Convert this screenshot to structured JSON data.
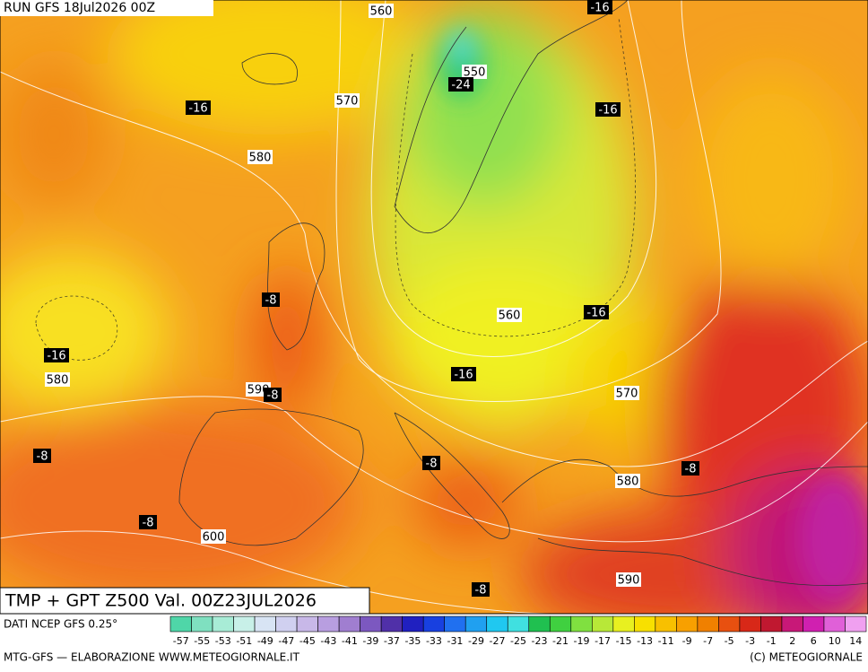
{
  "header": {
    "run": "RUN GFS 18Jul2026 00Z",
    "title": "TMP + GPT Z500 Val. 00Z23JUL2026"
  },
  "map": {
    "labels": [
      "560",
      "-16",
      "550",
      "-24",
      "570",
      "-16",
      "-16",
      "580",
      "-8",
      "560",
      "-16",
      "-16",
      "580",
      "-16",
      "590",
      "-8",
      "570",
      "-8",
      "-8",
      "-8",
      "580",
      "-8",
      "600",
      "590",
      "-8"
    ]
  },
  "colorbar": {
    "labels": [
      "-57",
      "-55",
      "-53",
      "-51",
      "-49",
      "-47",
      "-45",
      "-43",
      "-41",
      "-39",
      "-37",
      "-35",
      "-33",
      "-31",
      "-29",
      "-27",
      "-25",
      "-23",
      "-21",
      "-19",
      "-17",
      "-15",
      "-13",
      "-11",
      "-9",
      "-7",
      "-5",
      "-3",
      "-1",
      "2",
      "6",
      "10",
      "14"
    ],
    "colors": [
      "#4fd6a8",
      "#7fe0c0",
      "#a8ecd6",
      "#c8f0e8",
      "#d8e4f4",
      "#d0d0f0",
      "#c8b8e8",
      "#b89ee0",
      "#a07ed0",
      "#7c58c0",
      "#5030a8",
      "#2020c0",
      "#1840e0",
      "#2070f0",
      "#20a0f0",
      "#20c8f0",
      "#40e0e0",
      "#20c050",
      "#40d040",
      "#80e040",
      "#b8e838",
      "#e8f020",
      "#f8e000",
      "#f8c000",
      "#f8a000",
      "#f08000",
      "#e85010",
      "#d82818",
      "#c01830",
      "#c81878",
      "#d020b0",
      "#e060d8",
      "#f0a0f0"
    ]
  },
  "footer": {
    "source": "DATI NCEP GFS 0.25°",
    "credit": "MTG-GFS — ELABORAZIONE WWW.METEOGIORNALE.IT",
    "copyright": "(C) METEOGIORNALE"
  }
}
